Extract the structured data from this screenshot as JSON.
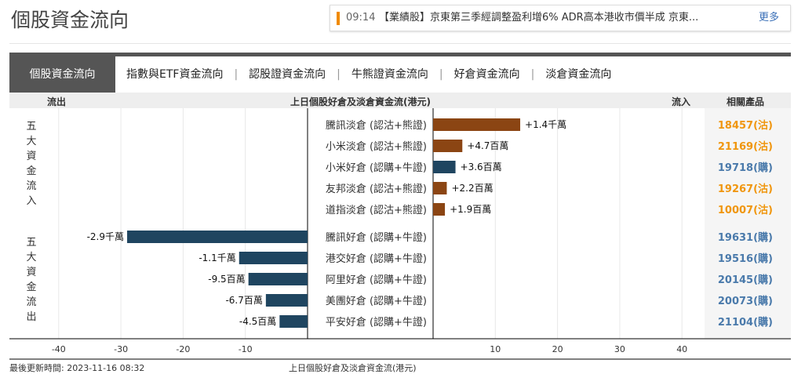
{
  "page_title": "個股資金流向",
  "ticker": {
    "time": "09:14",
    "text": "【業績股】京東第三季經調整盈利增6% ADR高本港收市價半成 京東...",
    "more": "更多"
  },
  "tabs": [
    {
      "label": "個股資金流向",
      "active": true
    },
    {
      "label": "指數與ETF資金流向"
    },
    {
      "label": "認股證資金流向"
    },
    {
      "label": "牛熊證資金流向"
    },
    {
      "label": "好倉資金流向"
    },
    {
      "label": "淡倉資金流向"
    }
  ],
  "tab_divider": "|",
  "header": {
    "outflow": "流出",
    "title": "上日個股好倉及淡倉資金流(港元)",
    "inflow": "流入",
    "related": "相關產品"
  },
  "group_labels": {
    "inflow": "五大資金流入",
    "outflow": "五大資金流出"
  },
  "colors": {
    "bear": "#8b4513",
    "bull": "#1f4560",
    "bear_text": "#f0960e",
    "bull_text": "#4a7aab"
  },
  "chart_data": {
    "type": "bar",
    "orientation": "horizontal",
    "unit": "百萬港元",
    "xlim": [
      -40,
      40
    ],
    "ticks": [
      -40,
      -30,
      -20,
      -10,
      10,
      20,
      30,
      40
    ],
    "grid": true,
    "xlabel": "上日個股好倉及淡倉資金流(港元)",
    "inflow": [
      {
        "name": "騰訊淡倉 (認沽+熊證)",
        "value": 14,
        "label": "+1.4千萬",
        "type": "bear",
        "product": "18457(沽)"
      },
      {
        "name": "小米淡倉 (認沽+熊證)",
        "value": 4.7,
        "label": "+4.7百萬",
        "type": "bear",
        "product": "21169(沽)"
      },
      {
        "name": "小米好倉 (認購+牛證)",
        "value": 3.6,
        "label": "+3.6百萬",
        "type": "bull",
        "product": "19718(購)"
      },
      {
        "name": "友邦淡倉 (認沽+熊證)",
        "value": 2.2,
        "label": "+2.2百萬",
        "type": "bear",
        "product": "19267(沽)"
      },
      {
        "name": "道指淡倉 (認沽+熊證)",
        "value": 1.9,
        "label": "+1.9百萬",
        "type": "bear",
        "product": "10007(沽)"
      }
    ],
    "outflow": [
      {
        "name": "騰訊好倉 (認購+牛證)",
        "value": -29,
        "label": "-2.9千萬",
        "type": "bull",
        "product": "19631(購)"
      },
      {
        "name": "港交好倉 (認購+牛證)",
        "value": -11,
        "label": "-1.1千萬",
        "type": "bull",
        "product": "19516(購)"
      },
      {
        "name": "阿里好倉 (認購+牛證)",
        "value": -9.5,
        "label": "-9.5百萬",
        "type": "bull",
        "product": "20145(購)"
      },
      {
        "name": "美團好倉 (認購+牛證)",
        "value": -6.7,
        "label": "-6.7百萬",
        "type": "bull",
        "product": "20073(購)"
      },
      {
        "name": "平安好倉 (認購+牛證)",
        "value": -4.5,
        "label": "-4.5百萬",
        "type": "bull",
        "product": "21104(購)"
      }
    ]
  },
  "footer": {
    "updated": "最後更新時間: 2023-11-16 08:32",
    "title": "上日個股好倉及淡倉資金流(港元)"
  }
}
